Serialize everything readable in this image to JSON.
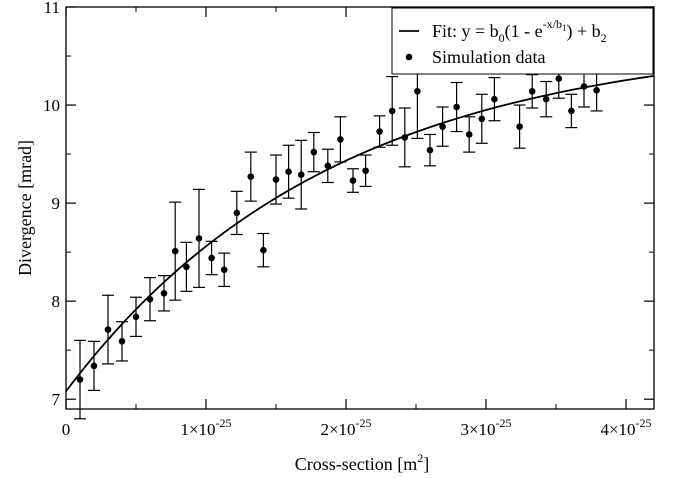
{
  "chart_data": {
    "type": "scatter",
    "xlabel": "Cross-section [m",
    "xlabel_sup": "2",
    "xlabel_close": "]",
    "ylabel": "Divergence [mrad]",
    "xlim": [
      0,
      4.2e-25
    ],
    "ylim": [
      6.9,
      11.0
    ],
    "x_ticks": [
      {
        "value": 0,
        "label": "0",
        "sup": ""
      },
      {
        "value": 1e-25,
        "label": "1×10",
        "sup": "-25"
      },
      {
        "value": 2e-25,
        "label": "2×10",
        "sup": "-25"
      },
      {
        "value": 3e-25,
        "label": "3×10",
        "sup": "-25"
      },
      {
        "value": 4e-25,
        "label": "4×10",
        "sup": "-25"
      }
    ],
    "y_ticks": [
      7,
      8,
      9,
      10,
      11
    ],
    "grid": false,
    "legend_position": "top-right",
    "legend": {
      "fit_text": "Fit: y = b",
      "fit_text_2": "(1 - e",
      "fit_exp": "-x/b",
      "fit_text_3": ") + b",
      "sub_0": "0",
      "sub_1": "1",
      "sub_2": "2",
      "data_label": "Simulation data"
    },
    "series": [
      {
        "name": "Fit: y = b0(1 - e^(-x/b1)) + b2",
        "kind": "line",
        "params": {
          "b0": 3.614,
          "b1": 1.9e-25,
          "b2": 7.08
        }
      },
      {
        "name": "Simulation data",
        "kind": "points_with_error",
        "points": [
          {
            "x": 1e-26,
            "y": 7.2,
            "err": 0.4
          },
          {
            "x": 2e-26,
            "y": 7.34,
            "err": 0.25
          },
          {
            "x": 3e-26,
            "y": 7.71,
            "err": 0.35
          },
          {
            "x": 4e-26,
            "y": 7.59,
            "err": 0.2
          },
          {
            "x": 5e-26,
            "y": 7.84,
            "err": 0.2
          },
          {
            "x": 6e-26,
            "y": 8.02,
            "err": 0.22
          },
          {
            "x": 7e-26,
            "y": 8.08,
            "err": 0.18
          },
          {
            "x": 7.8e-26,
            "y": 8.51,
            "err": 0.5
          },
          {
            "x": 8.6e-26,
            "y": 8.35,
            "err": 0.25
          },
          {
            "x": 9.5e-26,
            "y": 8.64,
            "err": 0.5
          },
          {
            "x": 1.04e-25,
            "y": 8.44,
            "err": 0.17
          },
          {
            "x": 1.13e-25,
            "y": 8.32,
            "err": 0.17
          },
          {
            "x": 1.22e-25,
            "y": 8.9,
            "err": 0.22
          },
          {
            "x": 1.32e-25,
            "y": 9.27,
            "err": 0.25
          },
          {
            "x": 1.41e-25,
            "y": 8.52,
            "err": 0.17
          },
          {
            "x": 1.5e-25,
            "y": 9.24,
            "err": 0.25
          },
          {
            "x": 1.59e-25,
            "y": 9.32,
            "err": 0.27
          },
          {
            "x": 1.68e-25,
            "y": 9.29,
            "err": 0.35
          },
          {
            "x": 1.77e-25,
            "y": 9.52,
            "err": 0.2
          },
          {
            "x": 1.87e-25,
            "y": 9.38,
            "err": 0.17
          },
          {
            "x": 1.96e-25,
            "y": 9.65,
            "err": 0.23
          },
          {
            "x": 2.05e-25,
            "y": 9.23,
            "err": 0.12
          },
          {
            "x": 2.14e-25,
            "y": 9.33,
            "err": 0.16
          },
          {
            "x": 2.24e-25,
            "y": 9.73,
            "err": 0.16
          },
          {
            "x": 2.33e-25,
            "y": 9.94,
            "err": 0.35
          },
          {
            "x": 2.42e-25,
            "y": 9.67,
            "err": 0.3
          },
          {
            "x": 2.51e-25,
            "y": 10.14,
            "err": 0.48
          },
          {
            "x": 2.6e-25,
            "y": 9.54,
            "err": 0.16
          },
          {
            "x": 2.69e-25,
            "y": 9.78,
            "err": 0.2
          },
          {
            "x": 2.79e-25,
            "y": 9.98,
            "err": 0.25
          },
          {
            "x": 2.88e-25,
            "y": 9.7,
            "err": 0.18
          },
          {
            "x": 2.97e-25,
            "y": 9.86,
            "err": 0.25
          },
          {
            "x": 3.06e-25,
            "y": 10.06,
            "err": 0.22
          },
          {
            "x": 3.24e-25,
            "y": 9.78,
            "err": 0.22
          },
          {
            "x": 3.33e-25,
            "y": 10.14,
            "err": 0.17
          },
          {
            "x": 3.43e-25,
            "y": 10.06,
            "err": 0.18
          },
          {
            "x": 3.52e-25,
            "y": 10.27,
            "err": 0.2
          },
          {
            "x": 3.61e-25,
            "y": 9.94,
            "err": 0.17
          },
          {
            "x": 3.7e-25,
            "y": 10.19,
            "err": 0.21
          },
          {
            "x": 3.79e-25,
            "y": 10.15,
            "err": 0.21
          }
        ]
      }
    ]
  }
}
